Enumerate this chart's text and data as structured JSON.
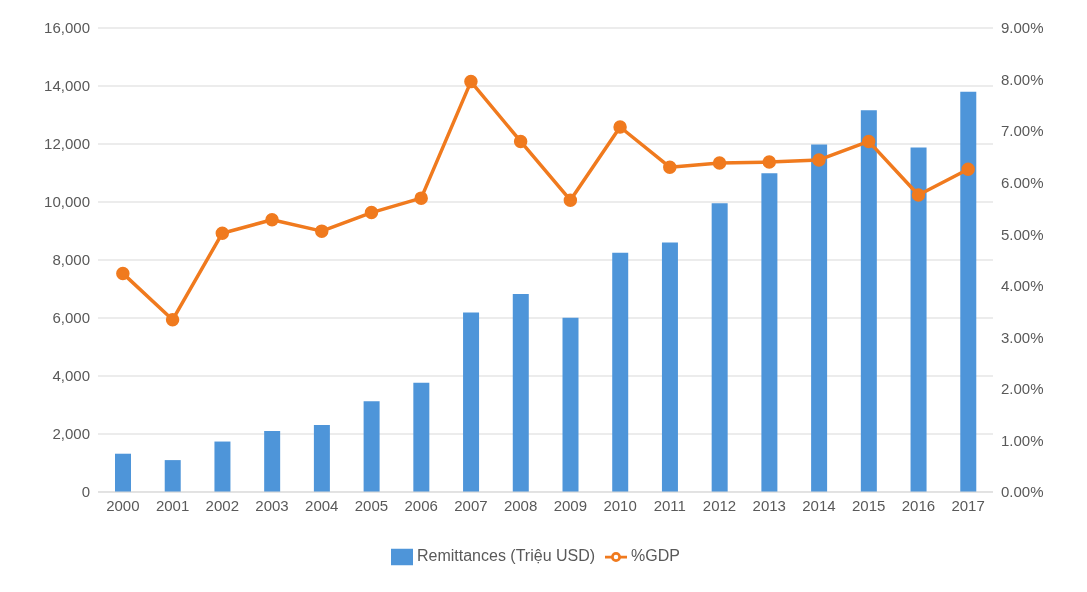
{
  "chart_data": {
    "type": "bar",
    "categories": [
      "2000",
      "2001",
      "2002",
      "2003",
      "2004",
      "2005",
      "2006",
      "2007",
      "2008",
      "2009",
      "2010",
      "2011",
      "2012",
      "2013",
      "2014",
      "2015",
      "2016",
      "2017"
    ],
    "series": [
      {
        "name": "Remittances (Triệu USD)",
        "color": "#4e95d9",
        "values": [
          1320,
          1100,
          1740,
          2100,
          2310,
          3130,
          3770,
          6190,
          6830,
          6010,
          8250,
          8600,
          9960,
          10990,
          11980,
          13160,
          11880,
          13800
        ]
      },
      {
        "name": "%GDP",
        "type": "line",
        "axis": "y2",
        "color": "#f07a1e",
        "values": [
          4.24,
          3.34,
          5.02,
          5.28,
          5.06,
          5.42,
          5.7,
          7.96,
          6.8,
          5.66,
          7.08,
          6.3,
          6.38,
          6.4,
          6.44,
          6.8,
          5.76,
          6.26
        ]
      }
    ],
    "ylim": [
      0,
      16000
    ],
    "yticks": [
      0,
      {
        "value": 2000,
        "label": "2,000"
      },
      {
        "value": 4000,
        "label": "4,000"
      },
      {
        "value": 6000,
        "label": "6,000"
      },
      {
        "value": 8000,
        "label": "8,000"
      },
      {
        "value": 10000,
        "label": "10,000"
      },
      {
        "value": 12000,
        "label": "12,000"
      },
      {
        "value": 14000,
        "label": "14,000"
      },
      {
        "value": 16000,
        "label": "16,000"
      }
    ],
    "y2lim": [
      0,
      9
    ],
    "y2ticks": [
      {
        "value": 0,
        "label": "0.00%"
      },
      {
        "value": 1,
        "label": "1.00%"
      },
      {
        "value": 2,
        "label": "2.00%"
      },
      {
        "value": 3,
        "label": "3.00%"
      },
      {
        "value": 4,
        "label": "4.00%"
      },
      {
        "value": 5,
        "label": "5.00%"
      },
      {
        "value": 6,
        "label": "6.00%"
      },
      {
        "value": 7,
        "label": "7.00%"
      },
      {
        "value": 8,
        "label": "8.00%"
      },
      {
        "value": 9,
        "label": "9.00%"
      }
    ],
    "grid": "y",
    "legend": "bottom",
    "marker": "circle",
    "line_style": "solid"
  }
}
